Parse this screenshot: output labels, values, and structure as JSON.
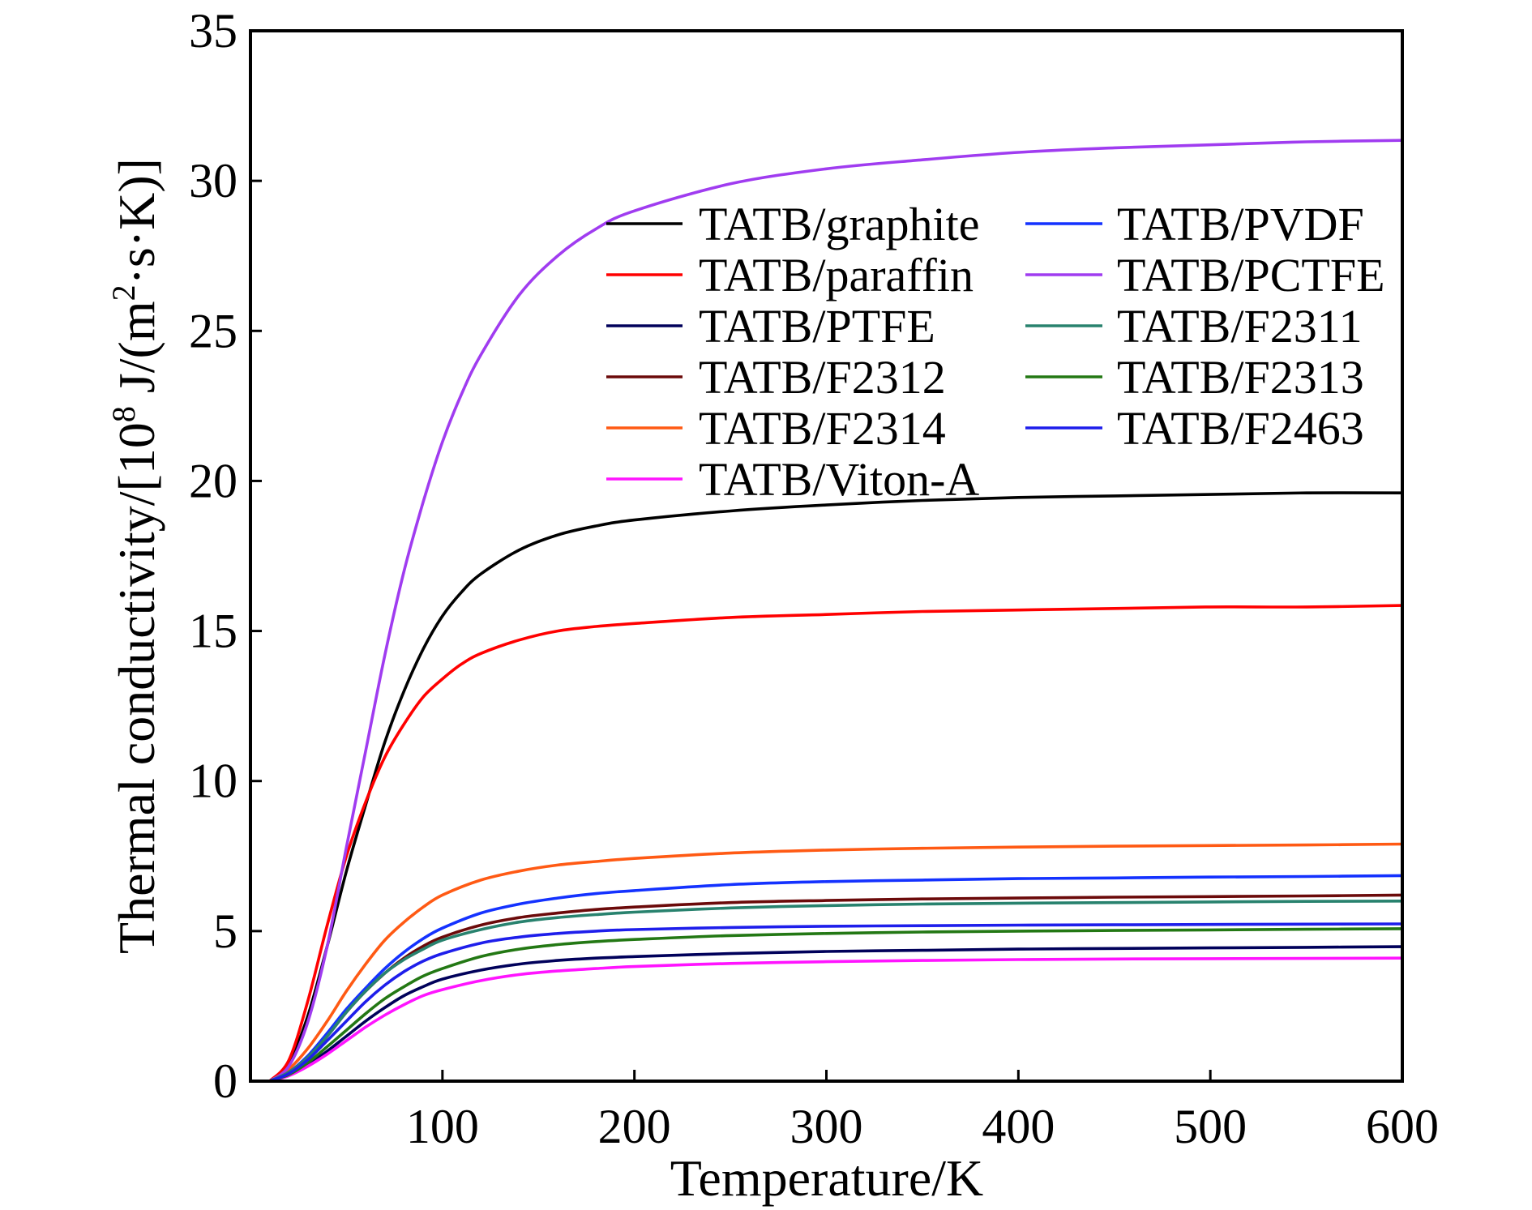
{
  "chart_data": {
    "type": "line",
    "title": "",
    "xlabel": "Temperature/K",
    "ylabel": "Thermal conductivity/[10",
    "ylabel_sup": "8",
    "ylabel_tail": " J/(m",
    "ylabel_sup2": "2",
    "ylabel_end": "·s·K)]",
    "xlim": [
      0,
      600
    ],
    "ylim": [
      0,
      35
    ],
    "xticks": [
      100,
      200,
      300,
      400,
      500,
      600
    ],
    "xtick_labels": [
      "100",
      "200",
      "300",
      "400",
      "500",
      "600"
    ],
    "yticks": [
      0,
      5,
      10,
      15,
      20,
      25,
      30,
      35
    ],
    "ytick_labels": [
      "0",
      "5",
      "10",
      "15",
      "20",
      "25",
      "30",
      "35"
    ],
    "grid": false,
    "legend_position": "upper-right, two columns",
    "series": [
      {
        "name": "TATB/graphite",
        "color": "#000000",
        "x": [
          10,
          20,
          30,
          40,
          50,
          60,
          70,
          80,
          90,
          100,
          110,
          120,
          140,
          160,
          180,
          200,
          250,
          300,
          350,
          400,
          450,
          500,
          550,
          600
        ],
        "y": [
          0,
          0.6,
          2.2,
          4.5,
          7.0,
          9.2,
          11.3,
          13.0,
          14.4,
          15.5,
          16.3,
          16.9,
          17.7,
          18.2,
          18.5,
          18.7,
          19.0,
          19.2,
          19.35,
          19.45,
          19.5,
          19.55,
          19.6,
          19.6
        ]
      },
      {
        "name": "TATB/paraffin",
        "color": "#ff0000",
        "x": [
          10,
          20,
          30,
          40,
          50,
          60,
          70,
          80,
          90,
          100,
          110,
          120,
          140,
          160,
          180,
          200,
          250,
          300,
          350,
          400,
          450,
          500,
          550,
          600
        ],
        "y": [
          0,
          0.7,
          2.7,
          5.2,
          7.5,
          9.3,
          10.8,
          11.9,
          12.8,
          13.4,
          13.9,
          14.25,
          14.7,
          15.0,
          15.15,
          15.25,
          15.45,
          15.55,
          15.65,
          15.7,
          15.75,
          15.8,
          15.8,
          15.85
        ]
      },
      {
        "name": "TATB/PTFE",
        "color": "#00005a",
        "x": [
          10,
          20,
          30,
          40,
          50,
          60,
          70,
          80,
          90,
          100,
          120,
          140,
          160,
          180,
          200,
          250,
          300,
          350,
          400,
          450,
          500,
          550,
          600
        ],
        "y": [
          0,
          0.2,
          0.55,
          1.0,
          1.5,
          2.0,
          2.45,
          2.85,
          3.15,
          3.4,
          3.7,
          3.9,
          4.02,
          4.1,
          4.15,
          4.25,
          4.32,
          4.36,
          4.4,
          4.42,
          4.44,
          4.46,
          4.48
        ]
      },
      {
        "name": "TATB/F2312",
        "color": "#6b0a0a",
        "x": [
          10,
          20,
          30,
          40,
          50,
          60,
          70,
          80,
          90,
          100,
          120,
          140,
          160,
          180,
          200,
          250,
          300,
          350,
          400,
          450,
          500,
          550,
          600
        ],
        "y": [
          0,
          0.3,
          0.8,
          1.5,
          2.3,
          3.0,
          3.6,
          4.1,
          4.5,
          4.8,
          5.2,
          5.45,
          5.6,
          5.72,
          5.8,
          5.95,
          6.02,
          6.07,
          6.1,
          6.13,
          6.15,
          6.17,
          6.2
        ]
      },
      {
        "name": "TATB/F2314",
        "color": "#ff5a14",
        "x": [
          10,
          20,
          30,
          40,
          50,
          60,
          70,
          80,
          90,
          100,
          120,
          140,
          160,
          180,
          200,
          250,
          300,
          350,
          400,
          450,
          500,
          550,
          600
        ],
        "y": [
          0,
          0.4,
          1.1,
          2.0,
          3.0,
          3.9,
          4.7,
          5.3,
          5.8,
          6.2,
          6.7,
          7.0,
          7.2,
          7.32,
          7.42,
          7.6,
          7.7,
          7.76,
          7.8,
          7.83,
          7.85,
          7.87,
          7.9
        ]
      },
      {
        "name": "TATB/Viton-A",
        "color": "#ff14ff",
        "x": [
          10,
          20,
          30,
          40,
          50,
          60,
          70,
          80,
          90,
          100,
          120,
          140,
          160,
          180,
          200,
          250,
          300,
          350,
          400,
          450,
          500,
          550,
          600
        ],
        "y": [
          0,
          0.18,
          0.5,
          0.9,
          1.35,
          1.8,
          2.2,
          2.55,
          2.85,
          3.05,
          3.35,
          3.55,
          3.67,
          3.75,
          3.82,
          3.92,
          3.98,
          4.02,
          4.05,
          4.07,
          4.08,
          4.09,
          4.1
        ]
      },
      {
        "name": "TATB/PVDF",
        "color": "#1432ff",
        "x": [
          10,
          20,
          30,
          40,
          50,
          60,
          70,
          80,
          90,
          100,
          120,
          140,
          160,
          180,
          200,
          250,
          300,
          350,
          400,
          450,
          500,
          550,
          600
        ],
        "y": [
          0,
          0.3,
          0.85,
          1.6,
          2.4,
          3.1,
          3.75,
          4.3,
          4.75,
          5.1,
          5.6,
          5.9,
          6.1,
          6.25,
          6.35,
          6.55,
          6.65,
          6.7,
          6.75,
          6.77,
          6.8,
          6.82,
          6.85
        ]
      },
      {
        "name": "TATB/PCTFE",
        "color": "#a03cf0",
        "x": [
          10,
          20,
          30,
          40,
          50,
          60,
          70,
          80,
          90,
          100,
          110,
          120,
          140,
          160,
          180,
          200,
          250,
          300,
          350,
          400,
          450,
          500,
          550,
          600
        ],
        "y": [
          0,
          0.5,
          2.0,
          4.5,
          7.8,
          11.0,
          14.2,
          17.0,
          19.3,
          21.3,
          22.9,
          24.2,
          26.2,
          27.5,
          28.4,
          29.0,
          29.9,
          30.4,
          30.7,
          30.95,
          31.1,
          31.2,
          31.3,
          31.35
        ]
      },
      {
        "name": "TATB/F2311",
        "color": "#28826e",
        "x": [
          10,
          20,
          30,
          40,
          50,
          60,
          70,
          80,
          90,
          100,
          120,
          140,
          160,
          180,
          200,
          250,
          300,
          350,
          400,
          450,
          500,
          550,
          600
        ],
        "y": [
          0,
          0.3,
          0.8,
          1.5,
          2.3,
          3.0,
          3.6,
          4.05,
          4.4,
          4.7,
          5.05,
          5.3,
          5.45,
          5.55,
          5.63,
          5.77,
          5.85,
          5.9,
          5.93,
          5.95,
          5.97,
          5.99,
          6.0
        ]
      },
      {
        "name": "TATB/F2313",
        "color": "#237814",
        "x": [
          10,
          20,
          30,
          40,
          50,
          60,
          70,
          80,
          90,
          100,
          120,
          140,
          160,
          180,
          200,
          250,
          300,
          350,
          400,
          450,
          500,
          550,
          600
        ],
        "y": [
          0,
          0.22,
          0.62,
          1.15,
          1.7,
          2.25,
          2.75,
          3.15,
          3.5,
          3.75,
          4.15,
          4.4,
          4.55,
          4.65,
          4.72,
          4.85,
          4.92,
          4.97,
          5.0,
          5.02,
          5.04,
          5.06,
          5.08
        ]
      },
      {
        "name": "TATB/F2463",
        "color": "#1e1eeb",
        "x": [
          10,
          20,
          30,
          40,
          50,
          60,
          70,
          80,
          90,
          100,
          120,
          140,
          160,
          180,
          200,
          250,
          300,
          350,
          400,
          450,
          500,
          550,
          600
        ],
        "y": [
          0,
          0.25,
          0.72,
          1.35,
          2.0,
          2.65,
          3.2,
          3.65,
          4.0,
          4.25,
          4.6,
          4.8,
          4.92,
          5.0,
          5.05,
          5.12,
          5.16,
          5.18,
          5.2,
          5.21,
          5.22,
          5.23,
          5.24
        ]
      }
    ]
  }
}
